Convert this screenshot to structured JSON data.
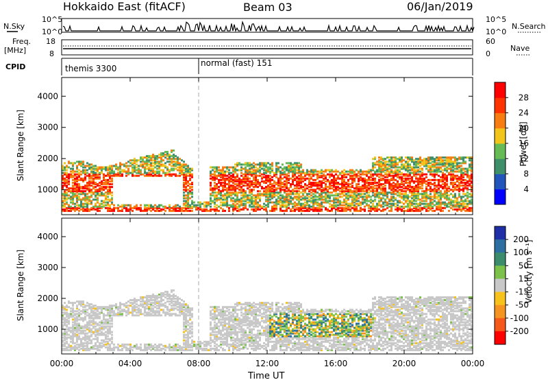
{
  "header": {
    "radar": "Hokkaido East (fitACF)",
    "beam": "Beam 03",
    "date": "06/Jan/2019"
  },
  "sky_panel": {
    "left_label": "N.Sky",
    "right_label": "N.Search",
    "left_ticks": [
      "10^5",
      "10^0"
    ],
    "right_ticks": [
      "10^5",
      "10^0"
    ]
  },
  "freq_panel": {
    "left_label_1": "Freq.",
    "left_label_2": "[MHz]",
    "right_label": "Nave",
    "left_ticks": [
      "18",
      "8"
    ],
    "right_ticks": [
      "60",
      "0"
    ]
  },
  "cpid_panel": {
    "label": "CPID",
    "modes": [
      {
        "name": "themis 3300",
        "start_hour": 0
      },
      {
        "name": "normal (fast) 151",
        "start_hour": 8
      }
    ]
  },
  "chart_data": [
    {
      "type": "heatmap",
      "name": "power",
      "ylabel": "Slant Range [km]",
      "xlabel": "",
      "xlim": [
        0,
        24
      ],
      "ylim": [
        200,
        4600
      ],
      "xticks": [
        "00:00",
        "04:00",
        "08:00",
        "12:00",
        "16:00",
        "20:00",
        "00:00"
      ],
      "yticks": [
        1000,
        2000,
        3000,
        4000
      ],
      "colorbar": {
        "label": "Power [dB]",
        "ticks": [
          "4",
          "8",
          "12",
          "16",
          "20",
          "24",
          "28"
        ],
        "colors": [
          "#0000ff",
          "#2255bb",
          "#3f8f6a",
          "#66bb55",
          "#f2c51a",
          "#f77d12",
          "#ff3300",
          "#ff0000"
        ]
      }
    },
    {
      "type": "heatmap",
      "name": "velocity",
      "ylabel": "Slant Range [km]",
      "xlabel": "Time UT",
      "xlim": [
        0,
        24
      ],
      "ylim": [
        200,
        4600
      ],
      "xticks": [
        "00:00",
        "04:00",
        "08:00",
        "12:00",
        "16:00",
        "20:00",
        "00:00"
      ],
      "yticks": [
        1000,
        2000,
        3000,
        4000
      ],
      "colorbar": {
        "label": "Velocity [m s⁻¹]",
        "ticks": [
          "200",
          "100",
          "50",
          "15",
          "-15",
          "-50",
          "-100",
          "-200"
        ],
        "colors": [
          "#1f2fa8",
          "#2d6fa0",
          "#3a8c6c",
          "#7cc24a",
          "#c8c8c8",
          "#f8c21c",
          "#f59420",
          "#f55818",
          "#ff0000"
        ]
      }
    }
  ]
}
